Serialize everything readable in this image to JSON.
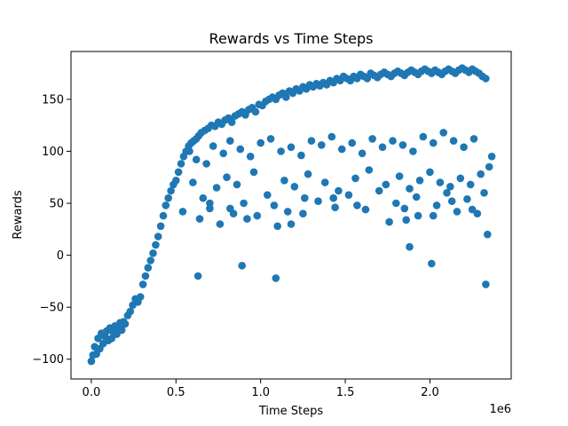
{
  "chart_data": {
    "type": "scatter",
    "title": "Rewards vs Time Steps",
    "xlabel": "Time Steps",
    "ylabel": "Rewards",
    "x_offset_label": "1e6",
    "x_scale": 1000000,
    "xlim": [
      -120000,
      2480000
    ],
    "ylim": [
      -119,
      196
    ],
    "x_ticks": [
      0,
      500000,
      1000000,
      1500000,
      2000000
    ],
    "x_tick_labels": [
      "0.0",
      "0.5",
      "1.0",
      "1.5",
      "2.0"
    ],
    "y_ticks": [
      -100,
      -50,
      0,
      50,
      100,
      150
    ],
    "y_tick_labels": [
      "−100",
      "−50",
      "0",
      "50",
      "100",
      "150"
    ],
    "grid": false,
    "color": "#1f77b4",
    "points_x": [
      0,
      10000,
      20000,
      30000,
      40000,
      50000,
      60000,
      70000,
      80000,
      90000,
      100000,
      110000,
      120000,
      130000,
      140000,
      150000,
      160000,
      170000,
      180000,
      190000,
      200000,
      215000,
      230000,
      245000,
      260000,
      275000,
      290000,
      305000,
      320000,
      335000,
      350000,
      365000,
      380000,
      395000,
      410000,
      425000,
      440000,
      455000,
      470000,
      485000,
      500000,
      515000,
      530000,
      545000,
      560000,
      575000,
      590000,
      605000,
      620000,
      635000,
      650000,
      670000,
      690000,
      710000,
      730000,
      750000,
      770000,
      790000,
      810000,
      830000,
      850000,
      870000,
      890000,
      910000,
      930000,
      950000,
      970000,
      990000,
      1010000,
      1030000,
      1050000,
      1070000,
      1090000,
      1110000,
      1130000,
      1150000,
      1170000,
      1190000,
      1210000,
      1230000,
      1250000,
      1270000,
      1290000,
      1310000,
      1330000,
      1350000,
      1370000,
      1390000,
      1410000,
      1430000,
      1450000,
      1470000,
      1490000,
      1510000,
      1530000,
      1550000,
      1570000,
      1590000,
      1610000,
      1630000,
      1650000,
      1670000,
      1690000,
      1710000,
      1730000,
      1750000,
      1770000,
      1790000,
      1810000,
      1830000,
      1850000,
      1870000,
      1890000,
      1910000,
      1930000,
      1950000,
      1970000,
      1990000,
      2010000,
      2030000,
      2050000,
      2070000,
      2090000,
      2110000,
      2130000,
      2150000,
      2170000,
      2190000,
      2210000,
      2230000,
      2250000,
      2270000,
      2290000,
      2310000,
      2330000,
      2350000,
      2365000,
      580000,
      620000,
      680000,
      720000,
      780000,
      820000,
      880000,
      940000,
      1000000,
      1060000,
      1120000,
      1180000,
      1240000,
      1300000,
      1360000,
      1420000,
      1480000,
      1540000,
      1600000,
      1660000,
      1720000,
      1780000,
      1840000,
      1900000,
      1960000,
      2020000,
      2080000,
      2140000,
      2200000,
      2260000,
      2320000,
      600000,
      660000,
      740000,
      800000,
      860000,
      960000,
      1040000,
      1140000,
      1200000,
      1280000,
      1380000,
      1460000,
      1560000,
      1640000,
      1740000,
      1820000,
      1880000,
      1940000,
      2000000,
      2060000,
      2120000,
      2180000,
      2240000,
      2300000,
      2340000,
      640000,
      700000,
      760000,
      840000,
      900000,
      980000,
      1080000,
      1160000,
      1260000,
      1340000,
      1440000,
      1520000,
      1620000,
      1700000,
      1800000,
      1860000,
      1920000,
      2040000,
      2100000,
      2160000,
      2220000,
      2280000,
      2330000,
      630000,
      890000,
      1090000,
      1180000,
      1880000,
      2010000,
      2020000,
      540000,
      700000,
      820000,
      920000,
      1100000,
      1250000,
      1430000,
      1570000,
      1760000,
      1850000,
      1930000,
      2130000,
      2250000,
      2350000
    ],
    "points_y": [
      -102,
      -96,
      -88,
      -95,
      -80,
      -90,
      -75,
      -85,
      -78,
      -73,
      -82,
      -70,
      -80,
      -74,
      -68,
      -76,
      -70,
      -65,
      -72,
      -64,
      -66,
      -58,
      -54,
      -48,
      -42,
      -45,
      -40,
      -28,
      -20,
      -12,
      -5,
      2,
      10,
      18,
      28,
      38,
      48,
      55,
      62,
      68,
      72,
      80,
      88,
      95,
      100,
      105,
      108,
      110,
      112,
      115,
      118,
      120,
      122,
      125,
      124,
      128,
      126,
      130,
      132,
      128,
      134,
      136,
      138,
      135,
      140,
      142,
      138,
      145,
      144,
      148,
      150,
      152,
      150,
      154,
      156,
      152,
      158,
      156,
      160,
      158,
      162,
      160,
      164,
      162,
      165,
      163,
      166,
      164,
      168,
      166,
      170,
      168,
      172,
      170,
      168,
      172,
      170,
      174,
      172,
      170,
      175,
      173,
      171,
      174,
      176,
      174,
      172,
      175,
      177,
      175,
      173,
      176,
      178,
      176,
      174,
      177,
      179,
      177,
      175,
      178,
      176,
      174,
      177,
      179,
      177,
      175,
      178,
      180,
      178,
      176,
      179,
      177,
      175,
      172,
      170,
      85,
      95,
      100,
      92,
      88,
      105,
      98,
      110,
      102,
      95,
      108,
      112,
      100,
      104,
      96,
      110,
      106,
      114,
      102,
      108,
      98,
      112,
      104,
      110,
      106,
      100,
      114,
      108,
      118,
      110,
      104,
      112,
      60,
      70,
      55,
      65,
      75,
      68,
      80,
      58,
      72,
      66,
      78,
      70,
      62,
      74,
      82,
      68,
      76,
      64,
      72,
      80,
      70,
      66,
      74,
      68,
      78,
      20,
      35,
      45,
      30,
      40,
      50,
      38,
      48,
      42,
      55,
      52,
      46,
      58,
      44,
      62,
      50,
      34,
      56,
      48,
      60,
      42,
      54,
      40,
      -28,
      -20,
      -10,
      -22,
      30,
      8,
      -8,
      38,
      42,
      50,
      45,
      35,
      28,
      40,
      55,
      48,
      32,
      45,
      38,
      52,
      44
    ]
  }
}
